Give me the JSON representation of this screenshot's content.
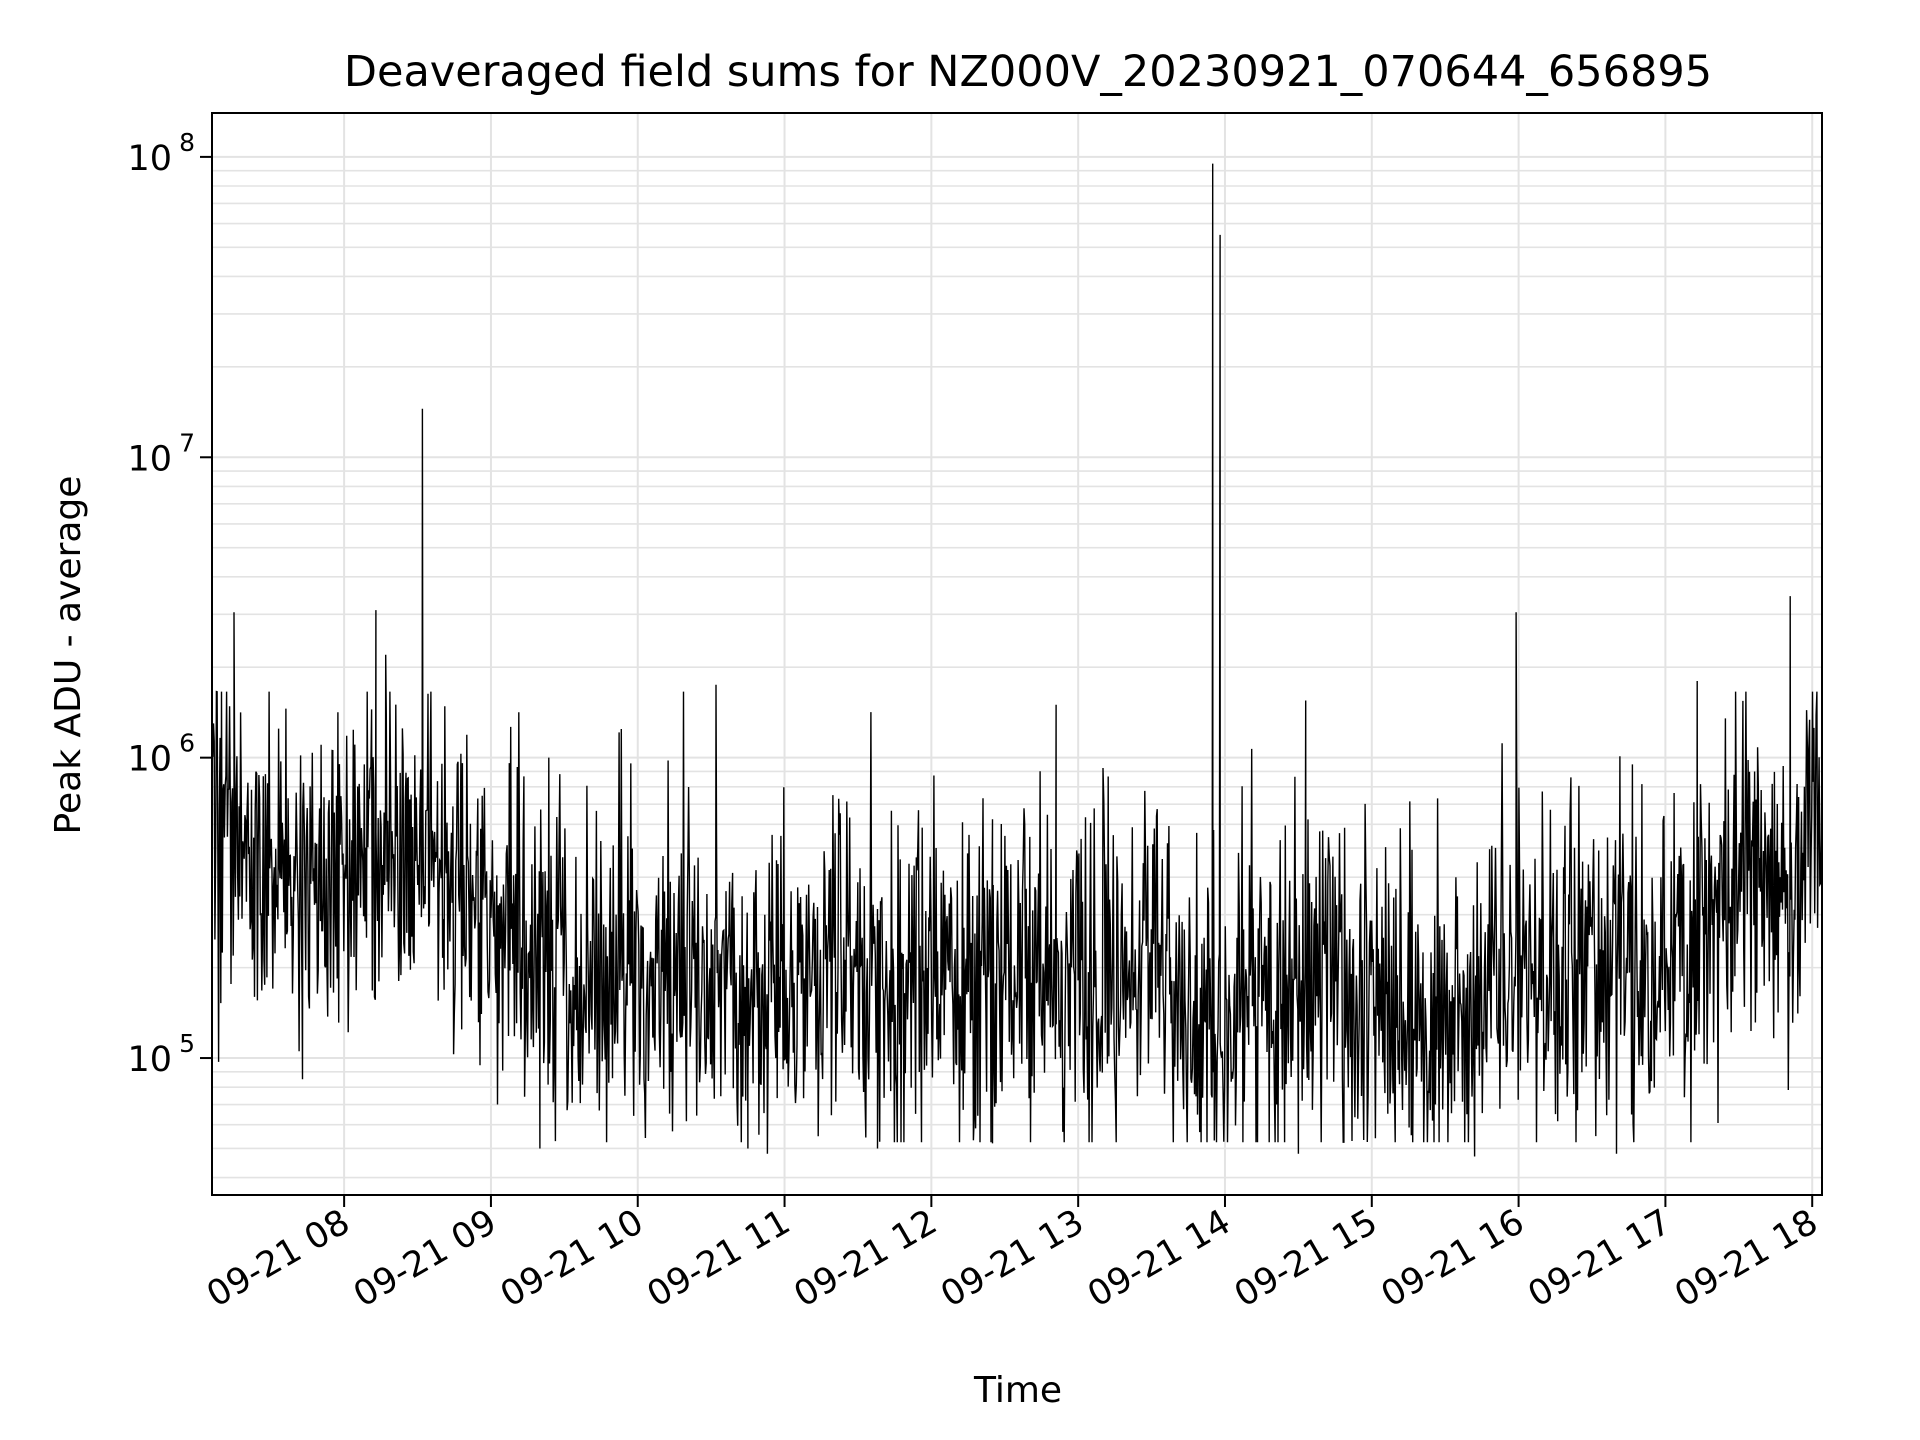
{
  "chart_data": {
    "type": "line",
    "title": "Deaveraged field sums for NZ000V_20230921_070644_656895",
    "xlabel": "Time",
    "ylabel": "Peak ADU - average",
    "yscale": "log",
    "ylim": [
      35000,
      140000000
    ],
    "xlim": [
      "09-21 07:06",
      "09-21 18:04"
    ],
    "grid": true,
    "line_color": "#000000",
    "x_ticks": [
      "09-21 08",
      "09-21 09",
      "09-21 10",
      "09-21 11",
      "09-21 12",
      "09-21 13",
      "09-21 14",
      "09-21 15",
      "09-21 16",
      "09-21 17",
      "09-21 18"
    ],
    "y_ticks": [
      {
        "base": "10",
        "exp": "5",
        "value": 100000
      },
      {
        "base": "10",
        "exp": "6",
        "value": 1000000
      },
      {
        "base": "10",
        "exp": "7",
        "value": 10000000
      },
      {
        "base": "10",
        "exp": "8",
        "value": 100000000
      }
    ],
    "baseline": [
      {
        "t": "09-21 07:06",
        "v": 800000
      },
      {
        "t": "09-21 07:30",
        "v": 420000
      },
      {
        "t": "09-21 08:00",
        "v": 430000
      },
      {
        "t": "09-21 08:30",
        "v": 540000
      },
      {
        "t": "09-21 09:00",
        "v": 280000
      },
      {
        "t": "09-21 09:30",
        "v": 210000
      },
      {
        "t": "09-21 10:00",
        "v": 190000
      },
      {
        "t": "09-21 10:30",
        "v": 190000
      },
      {
        "t": "09-21 11:00",
        "v": 180000
      },
      {
        "t": "09-21 11:30",
        "v": 200000
      },
      {
        "t": "09-21 12:00",
        "v": 190000
      },
      {
        "t": "09-21 12:30",
        "v": 180000
      },
      {
        "t": "09-21 13:00",
        "v": 170000
      },
      {
        "t": "09-21 13:30",
        "v": 230000
      },
      {
        "t": "09-21 13:55",
        "v": 110000
      },
      {
        "t": "09-21 14:30",
        "v": 190000
      },
      {
        "t": "09-21 15:00",
        "v": 150000
      },
      {
        "t": "09-21 15:20",
        "v": 100000
      },
      {
        "t": "09-21 15:50",
        "v": 220000
      },
      {
        "t": "09-21 16:30",
        "v": 200000
      },
      {
        "t": "09-21 17:00",
        "v": 200000
      },
      {
        "t": "09-21 17:30",
        "v": 410000
      },
      {
        "t": "09-21 17:50",
        "v": 290000
      },
      {
        "t": "09-21 18:04",
        "v": 850000
      }
    ],
    "spikes": [
      {
        "t": "09-21 07:15",
        "v": 3050000
      },
      {
        "t": "09-21 08:13",
        "v": 3100000
      },
      {
        "t": "09-21 08:17",
        "v": 2200000
      },
      {
        "t": "09-21 08:32",
        "v": 14500000
      },
      {
        "t": "09-21 10:32",
        "v": 1750000
      },
      {
        "t": "09-21 12:51",
        "v": 1500000
      },
      {
        "t": "09-21 13:55",
        "v": 95000000
      },
      {
        "t": "09-21 13:58",
        "v": 55000000
      },
      {
        "t": "09-21 14:33",
        "v": 1550000
      },
      {
        "t": "09-21 15:59",
        "v": 3050000
      },
      {
        "t": "09-21 17:13",
        "v": 1800000
      },
      {
        "t": "09-21 17:51",
        "v": 3450000
      }
    ],
    "dips": [
      {
        "t": "09-21 07:43",
        "v": 85000
      },
      {
        "t": "09-21 09:20",
        "v": 50000
      },
      {
        "t": "09-21 10:45",
        "v": 50000
      },
      {
        "t": "09-21 10:53",
        "v": 48000
      },
      {
        "t": "09-21 11:38",
        "v": 50000
      },
      {
        "t": "09-21 12:25",
        "v": 52000
      },
      {
        "t": "09-21 14:30",
        "v": 48000
      },
      {
        "t": "09-21 15:42",
        "v": 47000
      },
      {
        "t": "09-21 16:40",
        "v": 48000
      }
    ]
  }
}
